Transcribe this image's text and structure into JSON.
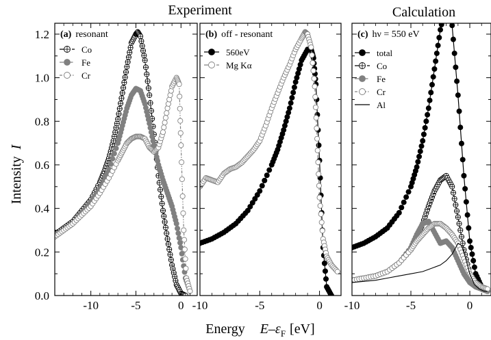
{
  "figure": {
    "group_titles": [
      "Experiment",
      "Calculation"
    ],
    "ylabel": "Intensity",
    "ylabel_symbol": "I",
    "xlabel_text": "Energy",
    "xlabel_symbol": "E",
    "xlabel_dash": "–",
    "xlabel_eps": "ε",
    "xlabel_sub": "F",
    "xlabel_unit": "[eV]"
  },
  "chart_data": [
    {
      "type": "line",
      "panel_label": "(a)",
      "title": "resonant",
      "xlim": [
        -14,
        1.8
      ],
      "ylim": [
        0,
        1.25
      ],
      "xticks": [
        -10,
        -5,
        0
      ],
      "yticks": [
        0.0,
        0.2,
        0.4,
        0.6,
        0.8,
        1.0,
        1.2
      ],
      "series": [
        {
          "name": "Co",
          "color": "#000000",
          "marker": "crossed-circle",
          "line": "dash",
          "x": [
            -14,
            -13,
            -12,
            -11,
            -10,
            -9,
            -8.5,
            -8,
            -7.5,
            -7,
            -6.5,
            -6,
            -5.5,
            -5,
            -4.8,
            -4.5,
            -4,
            -3.5,
            -3,
            -2.5,
            -2,
            -1.5,
            -1,
            -0.5,
            0,
            0.5
          ],
          "y": [
            0.28,
            0.31,
            0.34,
            0.39,
            0.44,
            0.52,
            0.57,
            0.63,
            0.71,
            0.81,
            0.93,
            1.05,
            1.16,
            1.2,
            1.21,
            1.19,
            1.08,
            0.92,
            0.74,
            0.55,
            0.39,
            0.26,
            0.14,
            0.05,
            0.01,
            0.0
          ]
        },
        {
          "name": "Fe",
          "color": "#808080",
          "marker": "filled-circle",
          "line": "dashdot",
          "x": [
            -14,
            -13,
            -12,
            -11,
            -10,
            -9,
            -8,
            -7,
            -6.5,
            -6,
            -5.5,
            -5,
            -4.5,
            -4,
            -3.5,
            -3,
            -2.5,
            -2,
            -1.5,
            -1,
            -0.5,
            0,
            0.5,
            1.0
          ],
          "y": [
            0.27,
            0.3,
            0.33,
            0.38,
            0.43,
            0.49,
            0.58,
            0.7,
            0.78,
            0.86,
            0.92,
            0.95,
            0.94,
            0.88,
            0.79,
            0.69,
            0.6,
            0.53,
            0.47,
            0.41,
            0.33,
            0.22,
            0.08,
            0.02
          ]
        },
        {
          "name": "Cr",
          "color": "#808080",
          "marker": "open-circle",
          "line": "dashdotdot",
          "x": [
            -14,
            -13,
            -12,
            -11,
            -10,
            -9,
            -8,
            -7,
            -6.5,
            -6,
            -5.5,
            -5,
            -4.5,
            -4,
            -3.5,
            -3,
            -2.5,
            -2,
            -1.5,
            -1,
            -0.5,
            -0.2,
            0,
            0.3,
            0.6,
            1.0
          ],
          "y": [
            0.27,
            0.3,
            0.33,
            0.37,
            0.41,
            0.47,
            0.54,
            0.62,
            0.66,
            0.7,
            0.72,
            0.73,
            0.73,
            0.72,
            0.68,
            0.66,
            0.68,
            0.75,
            0.86,
            0.96,
            1.0,
            0.97,
            0.69,
            0.3,
            0.08,
            0.02
          ]
        }
      ]
    },
    {
      "type": "line",
      "panel_label": "(b)",
      "title": "off - resonant",
      "xlim": [
        -10,
        1.8
      ],
      "ylim": [
        0,
        1.25
      ],
      "xticks": [
        -10,
        -5,
        0
      ],
      "series": [
        {
          "name": "560eV",
          "color": "#000000",
          "marker": "filled-circle",
          "line": "solid",
          "x": [
            -10,
            -9,
            -8,
            -7,
            -6,
            -5,
            -4,
            -3.5,
            -3,
            -2.5,
            -2,
            -1.5,
            -1,
            -0.7,
            -0.5,
            -0.3,
            0,
            0.3,
            0.6,
            1.0
          ],
          "y": [
            0.24,
            0.26,
            0.29,
            0.33,
            0.39,
            0.48,
            0.6,
            0.67,
            0.76,
            0.86,
            0.98,
            1.08,
            1.13,
            1.13,
            1.09,
            0.97,
            0.62,
            0.22,
            0.04,
            0.0
          ]
        },
        {
          "name": "Mg Kα",
          "color": "#808080",
          "marker": "open-circle",
          "line": "dash",
          "x": [
            -10,
            -9.5,
            -9,
            -8.5,
            -8,
            -7.5,
            -7,
            -6.5,
            -6,
            -5.5,
            -5,
            -4.5,
            -4,
            -3.5,
            -3,
            -2.5,
            -2,
            -1.5,
            -1.2,
            -1,
            -0.7,
            -0.4,
            -0.2,
            0,
            0.3,
            0.6,
            1.0,
            1.5
          ],
          "y": [
            0.5,
            0.54,
            0.53,
            0.52,
            0.56,
            0.58,
            0.59,
            0.61,
            0.64,
            0.67,
            0.71,
            0.78,
            0.86,
            0.93,
            1.0,
            1.06,
            1.13,
            1.18,
            1.21,
            1.2,
            1.14,
            0.96,
            0.72,
            0.45,
            0.26,
            0.18,
            0.14,
            0.11
          ]
        }
      ]
    },
    {
      "type": "line",
      "panel_label": "(c)",
      "title": "hν = 550 eV",
      "xlim": [
        -10,
        1.8
      ],
      "ylim": [
        0,
        1.25
      ],
      "xticks": [
        -10,
        -5,
        0
      ],
      "series": [
        {
          "name": "total",
          "color": "#000000",
          "marker": "filled-circle",
          "line": "solid",
          "x": [
            -10,
            -9,
            -8,
            -7,
            -6,
            -5,
            -4.5,
            -4,
            -3.5,
            -3,
            -2.5,
            -2,
            -1.5,
            -1,
            -0.5,
            0,
            0.5,
            1.0,
            1.5
          ],
          "y": [
            0.22,
            0.24,
            0.27,
            0.31,
            0.38,
            0.5,
            0.59,
            0.71,
            0.86,
            1.04,
            1.22,
            1.34,
            1.24,
            0.92,
            0.55,
            0.25,
            0.1,
            0.04,
            0.02
          ]
        },
        {
          "name": "Co",
          "color": "#000000",
          "marker": "crossed-circle",
          "line": "dash",
          "x": [
            -10,
            -9,
            -8,
            -7,
            -6,
            -5,
            -4.5,
            -4,
            -3.5,
            -3,
            -2.5,
            -2,
            -1.5,
            -1,
            -0.5,
            0,
            0.5,
            1.0,
            1.5
          ],
          "y": [
            0.07,
            0.08,
            0.09,
            0.11,
            0.15,
            0.21,
            0.26,
            0.33,
            0.41,
            0.48,
            0.53,
            0.55,
            0.5,
            0.36,
            0.21,
            0.1,
            0.05,
            0.03,
            0.02
          ]
        },
        {
          "name": "Fe",
          "color": "#808080",
          "marker": "filled-circle",
          "line": "dashdot",
          "x": [
            -10,
            -9,
            -8,
            -7,
            -6,
            -5,
            -4.5,
            -4,
            -3.5,
            -3,
            -2.5,
            -2,
            -1.5,
            -1,
            -0.5,
            0,
            0.5,
            1.0,
            1.5
          ],
          "y": [
            0.07,
            0.08,
            0.09,
            0.11,
            0.15,
            0.22,
            0.28,
            0.33,
            0.34,
            0.29,
            0.24,
            0.25,
            0.22,
            0.16,
            0.1,
            0.06,
            0.04,
            0.03,
            0.02
          ]
        },
        {
          "name": "Cr",
          "color": "#808080",
          "marker": "open-circle",
          "line": "dashdotdot",
          "x": [
            -10,
            -9,
            -8,
            -7,
            -6,
            -5,
            -4.5,
            -4,
            -3.5,
            -3,
            -2.5,
            -2,
            -1.5,
            -1,
            -0.5,
            0,
            0.5,
            1.0,
            1.5
          ],
          "y": [
            0.07,
            0.08,
            0.09,
            0.11,
            0.15,
            0.21,
            0.25,
            0.28,
            0.31,
            0.33,
            0.33,
            0.31,
            0.28,
            0.24,
            0.17,
            0.1,
            0.06,
            0.04,
            0.03
          ]
        },
        {
          "name": "Al",
          "color": "#000000",
          "marker": "none",
          "line": "thin-solid",
          "x": [
            -10,
            -9,
            -8,
            -7,
            -6,
            -5,
            -4,
            -3,
            -2.5,
            -2,
            -1.5,
            -1.2,
            -1,
            -0.7,
            -0.4,
            0,
            0.4,
            0.8,
            1.2,
            1.5
          ],
          "y": [
            0.06,
            0.065,
            0.07,
            0.08,
            0.09,
            0.1,
            0.11,
            0.13,
            0.14,
            0.16,
            0.19,
            0.22,
            0.24,
            0.23,
            0.18,
            0.1,
            0.05,
            0.03,
            0.02,
            0.02
          ]
        }
      ]
    }
  ]
}
